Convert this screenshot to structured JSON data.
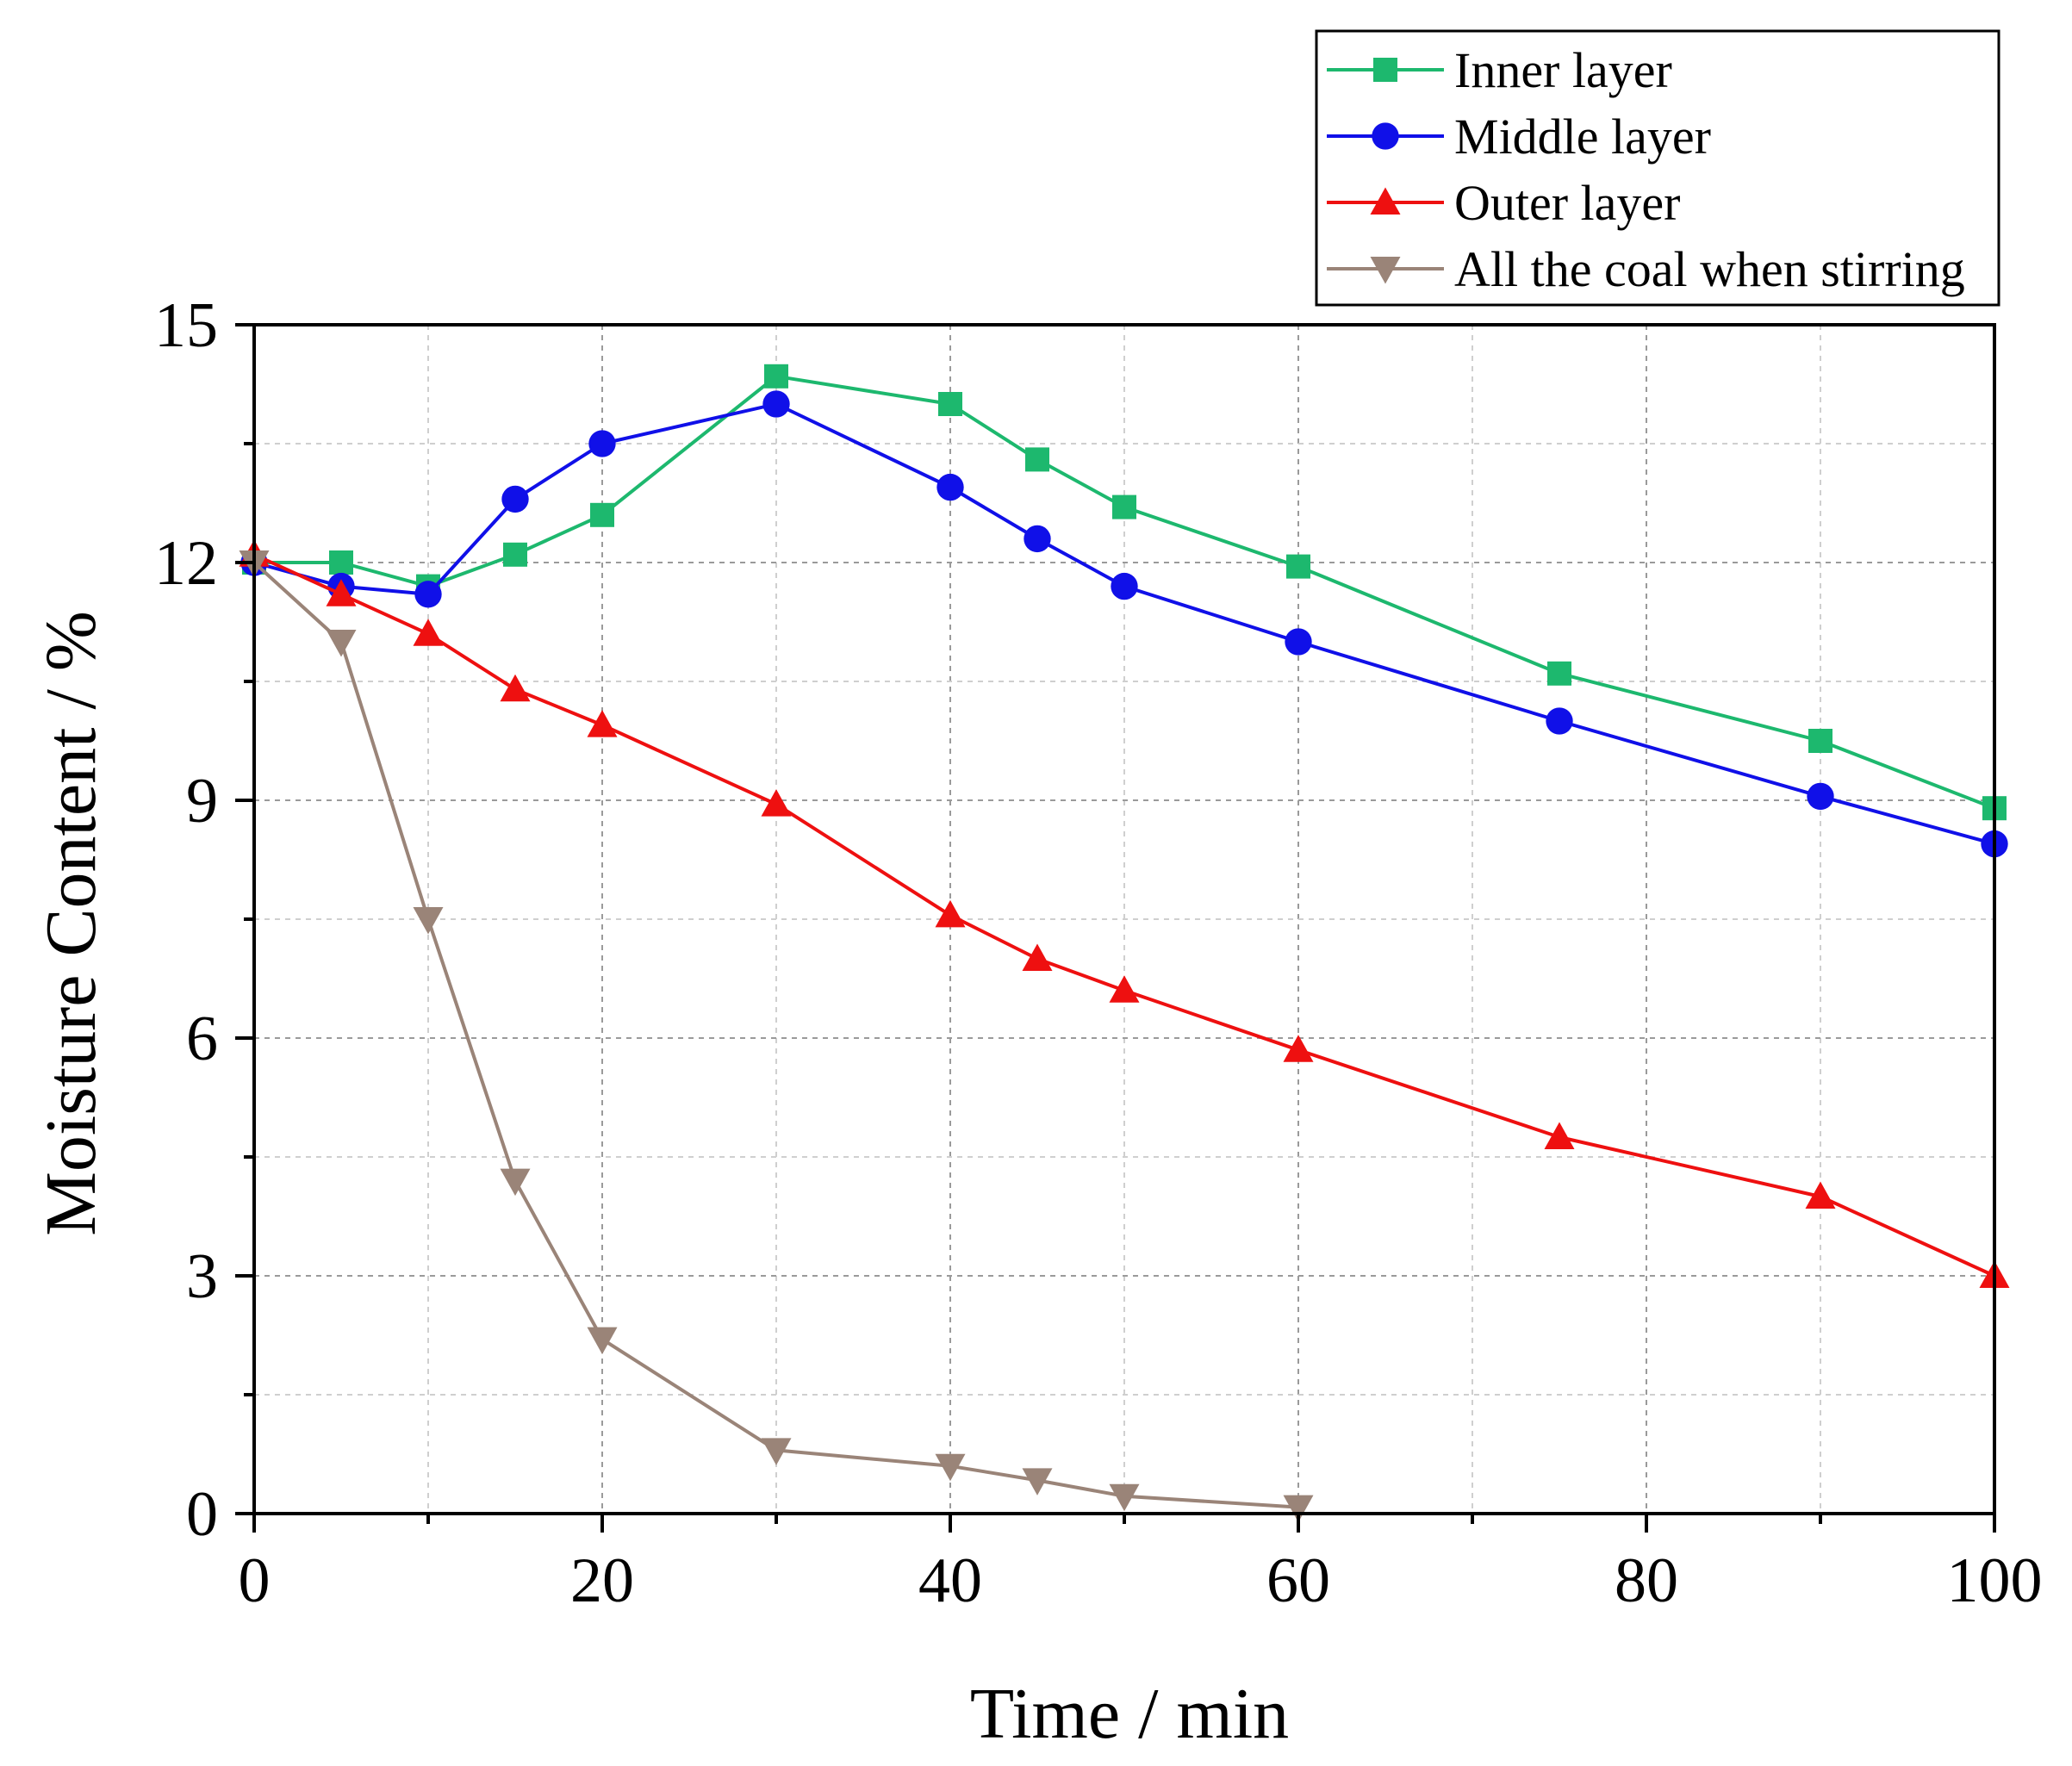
{
  "chart_data": {
    "type": "line",
    "title": "",
    "xlabel": "Time / min",
    "ylabel": "Moisture Content / %",
    "xlim": [
      0,
      100
    ],
    "ylim": [
      0,
      15
    ],
    "xticks": [
      0,
      20,
      40,
      60,
      80,
      100
    ],
    "yticks": [
      0,
      3,
      6,
      9,
      12,
      15
    ],
    "grid": true,
    "legend_position": "top-right",
    "series": [
      {
        "name": "Inner layer",
        "color": "#1db86e",
        "marker": "square",
        "x": [
          0,
          5,
          10,
          15,
          20,
          30,
          40,
          45,
          50,
          60,
          75,
          90,
          100
        ],
        "y": [
          12.0,
          12.0,
          11.7,
          12.1,
          12.6,
          14.35,
          14.0,
          13.3,
          12.7,
          11.95,
          10.6,
          9.75,
          8.9
        ]
      },
      {
        "name": "Middle layer",
        "color": "#1010e8",
        "marker": "circle",
        "x": [
          0,
          5,
          10,
          15,
          20,
          30,
          40,
          45,
          50,
          60,
          75,
          90,
          100
        ],
        "y": [
          12.0,
          11.7,
          11.6,
          12.8,
          13.5,
          14.0,
          12.95,
          12.3,
          11.7,
          11.0,
          10.0,
          9.05,
          8.45
        ]
      },
      {
        "name": "Outer layer",
        "color": "#ee1010",
        "marker": "triangle-up",
        "x": [
          0,
          5,
          10,
          15,
          20,
          30,
          40,
          45,
          50,
          60,
          75,
          90,
          100
        ],
        "y": [
          12.1,
          11.6,
          11.1,
          10.4,
          9.95,
          8.95,
          7.55,
          7.0,
          6.6,
          5.85,
          4.75,
          4.0,
          3.0
        ]
      },
      {
        "name": "All the coal when stirring",
        "color": "#9a8478",
        "marker": "triangle-down",
        "x": [
          0,
          5,
          10,
          15,
          20,
          30,
          40,
          45,
          50,
          60
        ],
        "y": [
          12.0,
          11.0,
          7.5,
          4.2,
          2.2,
          0.8,
          0.6,
          0.42,
          0.22,
          0.08
        ]
      }
    ]
  }
}
